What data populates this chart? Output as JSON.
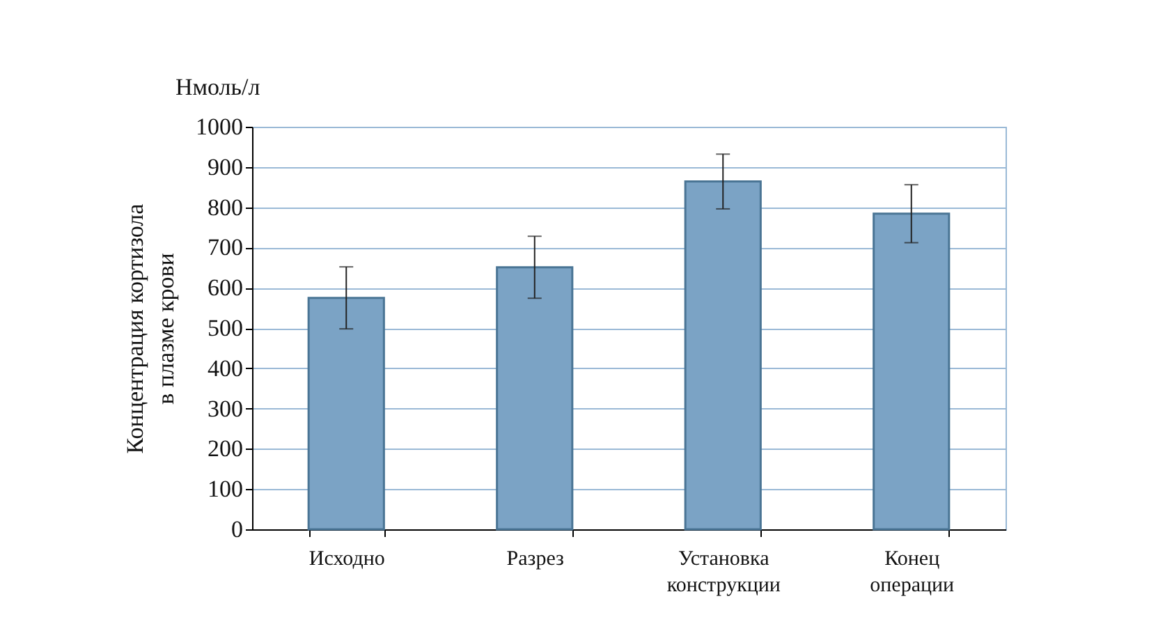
{
  "chart_data": {
    "type": "bar",
    "ylabel": "Концентрация кортизола в плазме крови",
    "annotations": [
      "Нмоль/л"
    ],
    "categories": [
      "Исходно",
      "Разрез",
      "Установка конструкции",
      "Конец операции"
    ],
    "series": [
      {
        "color": "#7ba3c5",
        "values": [
          575,
          651,
          864,
          784
        ],
        "errors": [
          77,
          77,
          68,
          72
        ]
      }
    ],
    "ylim": [
      0,
      1000
    ],
    "yticks": [
      0,
      100,
      200,
      300,
      400,
      500,
      600,
      700,
      800,
      900,
      1000
    ],
    "grid": "y"
  }
}
